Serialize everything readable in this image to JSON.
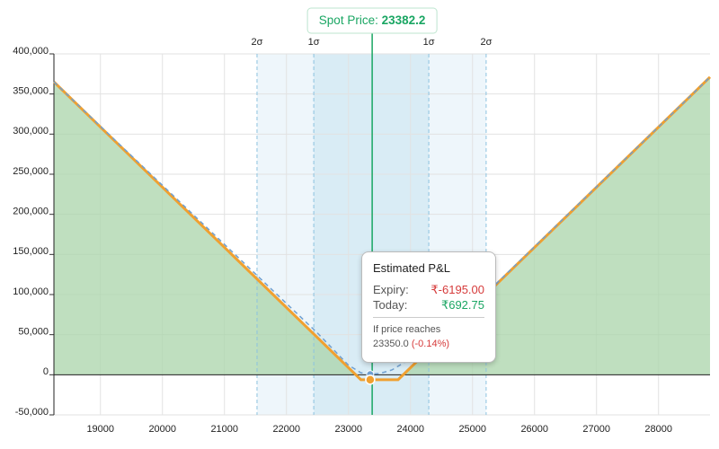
{
  "chart_data": {
    "type": "line",
    "xlim": [
      18250,
      28830
    ],
    "ylim": [
      -50000,
      400000
    ],
    "xticks": [
      19000,
      20000,
      21000,
      22000,
      23000,
      24000,
      25000,
      26000,
      27000,
      28000
    ],
    "yticks": [
      {
        "value": 400000,
        "label": "400,000"
      },
      {
        "value": 350000,
        "label": "350,000"
      },
      {
        "value": 300000,
        "label": "300,000"
      },
      {
        "value": 250000,
        "label": "250,000"
      },
      {
        "value": 200000,
        "label": "200,000"
      },
      {
        "value": 150000,
        "label": "150,000"
      },
      {
        "value": 100000,
        "label": "100,000"
      },
      {
        "value": 50000,
        "label": "50,000"
      },
      0,
      {
        "value": -50000,
        "label": "-50,000"
      }
    ],
    "grid": true,
    "series": [
      {
        "name": "Expiry",
        "color": "#f0a030",
        "x": [
          18250,
          23200,
          23800,
          28830
        ],
        "values": [
          365055,
          -6195,
          -6195,
          371055
        ]
      },
      {
        "name": "Today",
        "color": "#6f9fd0",
        "x": [
          18250,
          22500,
          23000,
          23200,
          23350,
          23500,
          23700,
          24000,
          25000,
          28830
        ],
        "values": [
          365055,
          52000,
          12000,
          2500,
          692.75,
          1500,
          6000,
          20000,
          85000,
          371055
        ]
      }
    ],
    "fill_color": "#a9d4a9",
    "spot": {
      "label": "Spot Price:",
      "value": 23382.2,
      "color": "#1aa663"
    },
    "sigma_lines": [
      {
        "label": "2σ",
        "value": 21525
      },
      {
        "label": "1σ",
        "value": 22440
      },
      {
        "label": "1σ",
        "value": 24295
      },
      {
        "label": "2σ",
        "value": 25220
      }
    ],
    "tooltip": {
      "title": "Estimated P&L",
      "expiry_name": "Expiry:",
      "expiry": -6195,
      "expiry_label": "₹-6195.00",
      "today_name": "Today:",
      "today": 692.75,
      "today_label": "₹692.75",
      "prompt": "If price reaches",
      "x": 23350,
      "x_label": "23350.0",
      "change_label": "(-0.14%)"
    }
  }
}
